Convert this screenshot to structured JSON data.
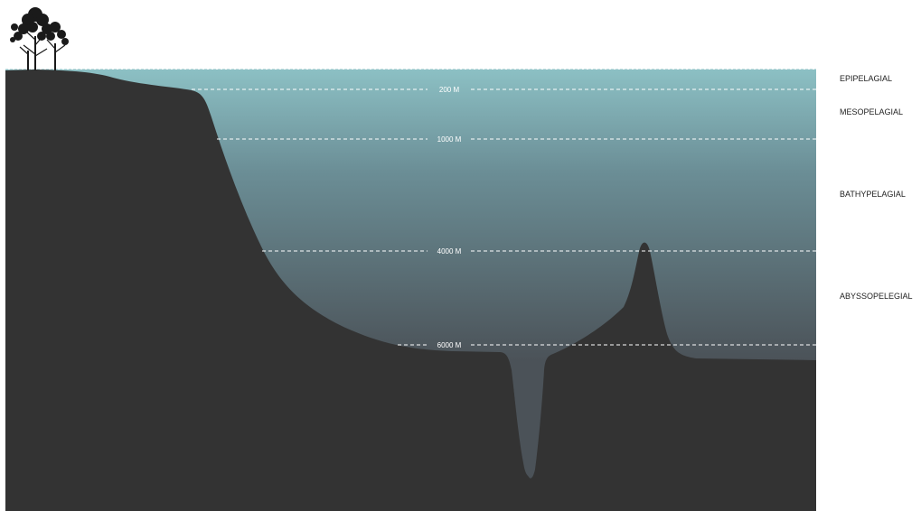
{
  "colors": {
    "water_surface": "#8cc0c4",
    "water_mid": "#6b8e96",
    "water_deep": "#4b5258",
    "ground": "#333333",
    "trench": "#4b5258",
    "depth_line": "#ffffff",
    "tree": "#1a1a1a"
  },
  "depth_lines": [
    {
      "label": "200 M"
    },
    {
      "label": "1000 M"
    },
    {
      "label": "4000 M"
    },
    {
      "label": "6000 M"
    }
  ],
  "zones": [
    {
      "label": "EPIPELAGIAL"
    },
    {
      "label": "MESOPELAGIAL"
    },
    {
      "label": "BATHYPELAGIAL"
    },
    {
      "label": "ABYSSOPELEGIAL"
    }
  ]
}
